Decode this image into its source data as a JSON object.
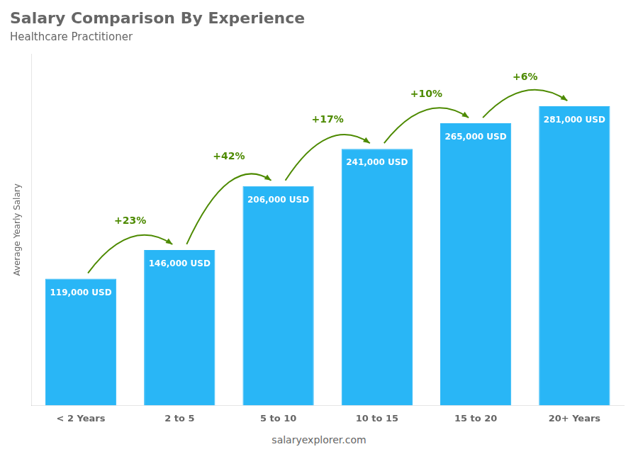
{
  "chart_data": {
    "type": "bar",
    "title": "Salary Comparison By Experience",
    "subtitle": "Healthcare Practitioner",
    "categories": [
      "< 2 Years",
      "2 to 5",
      "5 to 10",
      "10 to 15",
      "15 to 20",
      "20+ Years"
    ],
    "values": [
      119000,
      146000,
      206000,
      241000,
      265000,
      281000
    ],
    "value_labels": [
      "119,000 USD",
      "146,000 USD",
      "206,000 USD",
      "241,000 USD",
      "265,000 USD",
      "281,000 USD"
    ],
    "data_labels": true,
    "annotations": [
      "+23%",
      "+42%",
      "+17%",
      "+10%",
      "+6%"
    ],
    "y_label": "Average Yearly Salary",
    "footer": "salaryexplorer.com",
    "color": "#29b6f6",
    "ylim": [
      0,
      330000
    ],
    "grid": false,
    "tick_labels": "x"
  }
}
